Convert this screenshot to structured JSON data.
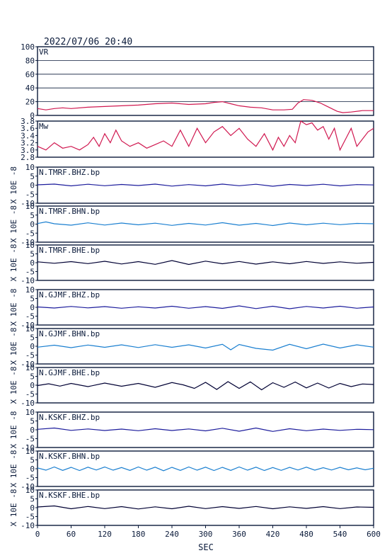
{
  "header": {
    "timestamp": "2022/07/06 20:40"
  },
  "xaxis": {
    "label": "SEC",
    "min": 0,
    "max": 600,
    "ticks": [
      0,
      60,
      120,
      180,
      240,
      300,
      360,
      420,
      480,
      540,
      600
    ]
  },
  "colors": {
    "vr": "#d01850",
    "mw": "#d01850",
    "bhz": "#1c1c9c",
    "bhn": "#1a7fd0",
    "bhe": "#000033",
    "axis": "#0a1a3a",
    "grid": "#0a1a3a"
  },
  "chart_data": [
    {
      "type": "line",
      "id": "vr",
      "label": "VR",
      "ylim": [
        0,
        100
      ],
      "yticks": [
        0,
        20,
        40,
        60,
        80,
        100
      ],
      "ytick_labels": [
        "0",
        "20",
        "40",
        "60",
        "80",
        "100"
      ],
      "grid": true,
      "x": [
        0,
        15,
        30,
        45,
        60,
        90,
        120,
        150,
        180,
        210,
        240,
        270,
        300,
        315,
        330,
        345,
        360,
        380,
        400,
        420,
        440,
        455,
        465,
        475,
        490,
        505,
        515,
        525,
        535,
        545,
        560,
        580,
        600
      ],
      "y": [
        10,
        8,
        10,
        11,
        10,
        12,
        13,
        14,
        15,
        17,
        18,
        16,
        17,
        19,
        20,
        17,
        14,
        12,
        11,
        8,
        8,
        9,
        18,
        23,
        22,
        18,
        14,
        10,
        6,
        4,
        5,
        7,
        7
      ]
    },
    {
      "type": "line",
      "id": "mw",
      "label": "Mw",
      "ylim": [
        2.8,
        3.8
      ],
      "yticks": [
        2.8,
        3.0,
        3.2,
        3.4,
        3.6,
        3.8
      ],
      "ytick_labels": [
        "2.8",
        "3.0",
        "3.2",
        "3.4",
        "3.6",
        "3.8"
      ],
      "grid": false,
      "x": [
        0,
        15,
        30,
        45,
        60,
        75,
        90,
        100,
        110,
        120,
        130,
        140,
        150,
        165,
        180,
        195,
        210,
        225,
        240,
        255,
        270,
        285,
        300,
        315,
        330,
        345,
        360,
        375,
        390,
        405,
        420,
        430,
        440,
        450,
        460,
        470,
        480,
        490,
        500,
        510,
        520,
        530,
        540,
        550,
        560,
        570,
        580,
        590,
        600
      ],
      "y": [
        3.1,
        3.0,
        3.2,
        3.05,
        3.1,
        3.0,
        3.15,
        3.35,
        3.1,
        3.45,
        3.2,
        3.55,
        3.25,
        3.1,
        3.2,
        3.05,
        3.15,
        3.25,
        3.1,
        3.55,
        3.1,
        3.6,
        3.2,
        3.5,
        3.65,
        3.4,
        3.6,
        3.3,
        3.1,
        3.45,
        3.0,
        3.35,
        3.1,
        3.4,
        3.2,
        3.8,
        3.7,
        3.75,
        3.55,
        3.65,
        3.3,
        3.6,
        3.0,
        3.3,
        3.6,
        3.1,
        3.3,
        3.5,
        3.6
      ]
    },
    {
      "type": "line",
      "id": "tmrf-bhz",
      "label": "N.TMRF.BHZ.bp",
      "ylabel": "X 10E -8",
      "ylim": [
        -10,
        10
      ],
      "yticks": [
        -10,
        -5,
        0,
        5,
        10
      ],
      "ytick_labels": [
        "-10",
        "-5",
        "0",
        "5",
        "10"
      ],
      "grid": false,
      "color_key": "bhz",
      "x": [
        0,
        30,
        60,
        90,
        120,
        150,
        180,
        210,
        240,
        270,
        300,
        330,
        360,
        390,
        420,
        450,
        480,
        510,
        540,
        570,
        600
      ],
      "y": [
        0.2,
        0.6,
        -0.4,
        0.5,
        -0.3,
        0.4,
        -0.2,
        0.6,
        -0.5,
        0.3,
        -0.4,
        0.6,
        -0.3,
        0.5,
        -0.6,
        0.4,
        -0.2,
        0.5,
        -0.4,
        0.3,
        0.1
      ]
    },
    {
      "type": "line",
      "id": "tmrf-bhn",
      "label": "N.TMRF.BHN.bp",
      "ylabel": "X 10E -8",
      "ylim": [
        -10,
        10
      ],
      "yticks": [
        -10,
        -5,
        0,
        5,
        10
      ],
      "ytick_labels": [
        "-10",
        "-5",
        "0",
        "5",
        "10"
      ],
      "grid": false,
      "color_key": "bhn",
      "x": [
        0,
        15,
        30,
        60,
        90,
        120,
        150,
        180,
        210,
        240,
        270,
        300,
        330,
        360,
        390,
        420,
        450,
        480,
        510,
        540,
        570,
        600
      ],
      "y": [
        0.3,
        1.2,
        0.2,
        -0.6,
        0.7,
        -0.5,
        0.6,
        -0.4,
        0.5,
        -0.7,
        0.4,
        -0.5,
        0.8,
        -0.6,
        0.4,
        -0.8,
        0.6,
        -0.4,
        0.5,
        -0.3,
        0.4,
        0.2
      ]
    },
    {
      "type": "line",
      "id": "tmrf-bhe",
      "label": "N.TMRF.BHE.bp",
      "ylabel": "X 10E -8",
      "ylim": [
        -10,
        10
      ],
      "yticks": [
        -10,
        -5,
        0,
        5,
        10
      ],
      "ytick_labels": [
        "-10",
        "-5",
        "0",
        "5",
        "10"
      ],
      "grid": false,
      "color_key": "bhe",
      "x": [
        0,
        30,
        60,
        90,
        120,
        150,
        180,
        210,
        240,
        270,
        300,
        330,
        360,
        390,
        420,
        450,
        480,
        510,
        540,
        570,
        600
      ],
      "y": [
        0.5,
        -0.3,
        0.6,
        -0.5,
        0.8,
        -0.7,
        0.6,
        -0.9,
        1.2,
        -1.0,
        0.9,
        -0.6,
        0.7,
        -0.8,
        0.5,
        -0.6,
        0.7,
        -0.4,
        0.5,
        -0.3,
        0.2
      ]
    },
    {
      "type": "line",
      "id": "gjmf-bhz",
      "label": "N.GJMF.BHZ.bp",
      "ylabel": "X 10E -8",
      "ylim": [
        -10,
        10
      ],
      "yticks": [
        -10,
        -5,
        0,
        5,
        10
      ],
      "ytick_labels": [
        "-10",
        "-5",
        "0",
        "5",
        "10"
      ],
      "grid": false,
      "color_key": "bhz",
      "x": [
        0,
        30,
        60,
        90,
        120,
        150,
        180,
        210,
        240,
        270,
        300,
        330,
        360,
        390,
        420,
        450,
        480,
        510,
        540,
        570,
        600
      ],
      "y": [
        0.2,
        -0.4,
        0.5,
        -0.3,
        0.4,
        -0.5,
        0.3,
        -0.4,
        0.6,
        -0.5,
        0.4,
        -0.6,
        0.8,
        -0.7,
        0.6,
        -0.8,
        0.5,
        -0.4,
        0.6,
        -0.5,
        0.2
      ]
    },
    {
      "type": "line",
      "id": "gjmf-bhn",
      "label": "N.GJMF.BHN.bp",
      "ylabel": "X 10E -8",
      "ylim": [
        -10,
        10
      ],
      "yticks": [
        -10,
        -5,
        0,
        5,
        10
      ],
      "ytick_labels": [
        "-10",
        "-5",
        "0",
        "5",
        "10"
      ],
      "grid": false,
      "color_key": "bhn",
      "x": [
        0,
        30,
        60,
        90,
        120,
        150,
        180,
        210,
        240,
        270,
        300,
        330,
        345,
        360,
        390,
        420,
        450,
        480,
        510,
        540,
        570,
        600
      ],
      "y": [
        -0.5,
        0.6,
        -0.8,
        0.7,
        -0.6,
        0.8,
        -0.7,
        0.9,
        -0.6,
        0.8,
        -1.0,
        1.1,
        -2.0,
        1.0,
        -1.2,
        -2.2,
        1.1,
        -1.4,
        1.2,
        -1.0,
        0.8,
        -0.5
      ]
    },
    {
      "type": "line",
      "id": "gjmf-bhe",
      "label": "N.GJMF.BHE.bp",
      "ylabel": "X 10E -8",
      "ylim": [
        -10,
        10
      ],
      "yticks": [
        -10,
        -5,
        0,
        5,
        10
      ],
      "ytick_labels": [
        "-10",
        "-5",
        "0",
        "5",
        "10"
      ],
      "grid": false,
      "color_key": "bhe",
      "x": [
        0,
        20,
        40,
        60,
        90,
        120,
        150,
        180,
        210,
        240,
        260,
        280,
        300,
        320,
        340,
        360,
        380,
        400,
        420,
        440,
        460,
        480,
        500,
        520,
        540,
        560,
        580,
        600
      ],
      "y": [
        -0.2,
        0.8,
        -0.5,
        1.0,
        -0.8,
        1.2,
        -0.6,
        1.0,
        -1.2,
        1.5,
        0.2,
        -1.8,
        1.6,
        -2.4,
        2.0,
        -1.8,
        1.9,
        -2.6,
        1.4,
        -1.2,
        1.8,
        -1.5,
        1.2,
        -1.6,
        1.0,
        -0.8,
        0.7,
        0.4
      ]
    },
    {
      "type": "line",
      "id": "kskf-bhz",
      "label": "N.KSKF.BHZ.bp",
      "ylabel": "X 10E -8",
      "ylim": [
        -10,
        10
      ],
      "yticks": [
        -10,
        -5,
        0,
        5,
        10
      ],
      "ytick_labels": [
        "-10",
        "-5",
        "0",
        "5",
        "10"
      ],
      "grid": false,
      "color_key": "bhz",
      "x": [
        0,
        30,
        60,
        90,
        120,
        150,
        180,
        210,
        240,
        270,
        300,
        330,
        360,
        390,
        420,
        450,
        480,
        510,
        540,
        570,
        600
      ],
      "y": [
        0.3,
        1.0,
        -0.3,
        0.5,
        -0.4,
        0.4,
        -0.5,
        0.6,
        -0.4,
        0.5,
        -0.6,
        0.9,
        -0.8,
        1.0,
        -0.9,
        0.6,
        -0.5,
        0.4,
        -0.3,
        0.3,
        0.1
      ]
    },
    {
      "type": "line",
      "id": "kskf-bhn",
      "label": "N.KSKF.BHN.bp",
      "ylabel": "X 10E -8",
      "ylim": [
        -10,
        10
      ],
      "yticks": [
        -10,
        -5,
        0,
        5,
        10
      ],
      "ytick_labels": [
        "-10",
        "-5",
        "0",
        "5",
        "10"
      ],
      "grid": false,
      "color_key": "bhn",
      "x": [
        0,
        15,
        30,
        45,
        60,
        75,
        90,
        105,
        120,
        135,
        150,
        165,
        180,
        195,
        210,
        225,
        240,
        255,
        270,
        285,
        300,
        315,
        330,
        345,
        360,
        375,
        390,
        405,
        420,
        435,
        450,
        465,
        480,
        495,
        510,
        525,
        540,
        555,
        570,
        585,
        600
      ],
      "y": [
        0.5,
        -0.8,
        1.0,
        -0.9,
        0.8,
        -1.0,
        0.9,
        -0.7,
        1.0,
        -0.8,
        0.7,
        -0.9,
        1.0,
        -0.8,
        0.9,
        -1.1,
        0.8,
        -0.9,
        1.0,
        -0.8,
        0.9,
        -1.0,
        0.8,
        -0.9,
        1.0,
        -0.8,
        0.9,
        -1.0,
        0.7,
        -0.9,
        0.8,
        -0.7,
        0.9,
        -0.8,
        0.6,
        -0.7,
        0.8,
        -0.6,
        0.5,
        -0.6,
        0.3
      ]
    },
    {
      "type": "line",
      "id": "kskf-bhe",
      "label": "N.KSKF.BHE.bp",
      "ylabel": "X 10E -8",
      "ylim": [
        -10,
        10
      ],
      "yticks": [
        -10,
        -5,
        0,
        5,
        10
      ],
      "ytick_labels": [
        "-10",
        "-5",
        "0",
        "5",
        "10"
      ],
      "grid": false,
      "color_key": "bhe",
      "x": [
        0,
        30,
        60,
        90,
        120,
        150,
        180,
        210,
        240,
        270,
        300,
        330,
        360,
        390,
        420,
        450,
        480,
        510,
        540,
        570,
        600
      ],
      "y": [
        0.4,
        1.0,
        -0.6,
        0.7,
        -0.5,
        0.6,
        -0.7,
        0.5,
        -0.6,
        0.8,
        -0.5,
        0.6,
        -0.4,
        0.7,
        -0.6,
        0.5,
        -0.4,
        0.6,
        -0.5,
        0.4,
        0.2
      ]
    }
  ]
}
